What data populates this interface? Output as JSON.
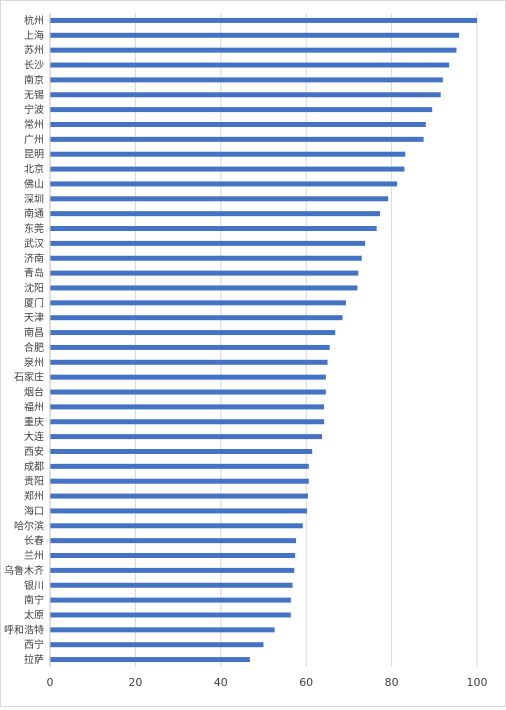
{
  "chart_data": {
    "type": "bar",
    "orientation": "horizontal",
    "categories": [
      "杭州",
      "上海",
      "苏州",
      "长沙",
      "南京",
      "无锡",
      "宁波",
      "常州",
      "广州",
      "昆明",
      "北京",
      "佛山",
      "深圳",
      "南通",
      "东莞",
      "武汉",
      "济南",
      "青岛",
      "沈阳",
      "厦门",
      "天津",
      "南昌",
      "合肥",
      "泉州",
      "石家庄",
      "烟台",
      "福州",
      "重庆",
      "大连",
      "西安",
      "成都",
      "贵阳",
      "郑州",
      "海口",
      "哈尔滨",
      "长春",
      "兰州",
      "乌鲁木齐",
      "银川",
      "南宁",
      "太原",
      "呼和浩特",
      "西宁",
      "拉萨"
    ],
    "values": [
      100,
      95.8,
      95.2,
      93.5,
      92,
      91.5,
      89.5,
      88,
      87.5,
      83.2,
      83,
      81.3,
      79.2,
      77.3,
      76.5,
      73.8,
      73,
      72.2,
      72,
      69.3,
      68.5,
      66.8,
      65.5,
      65,
      64.6,
      64.6,
      64.2,
      64.2,
      63.7,
      61.4,
      60.6,
      60.6,
      60.4,
      60.2,
      59.2,
      57.6,
      57.4,
      57.2,
      56.8,
      56.4,
      56.4,
      52.6,
      50,
      46.8
    ],
    "title": "",
    "xlabel": "",
    "ylabel": "",
    "xlim": [
      0,
      100
    ],
    "xticks": [
      0,
      20,
      40,
      60,
      80,
      100
    ],
    "grid": "vertical",
    "legend": "none",
    "bar_color": "#4472c4",
    "grid_color": "#d9d9d9",
    "axis_color": "#bfbfbf"
  }
}
